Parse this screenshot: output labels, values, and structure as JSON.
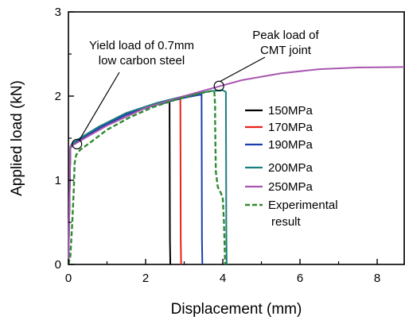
{
  "chart_data": {
    "type": "line",
    "xlabel": "Displacement (mm)",
    "ylabel": "Applied load (kN)",
    "xlim": [
      0,
      8.7
    ],
    "ylim": [
      0,
      3
    ],
    "xticks": [
      0,
      2,
      4,
      6,
      8
    ],
    "yticks": [
      0,
      1,
      2,
      3
    ],
    "grid": false,
    "legend_position": "right-center",
    "series": [
      {
        "name": "150MPa",
        "color": "#000000",
        "dash": "solid",
        "points": [
          [
            0,
            0
          ],
          [
            0.05,
            1.38
          ],
          [
            0.1,
            1.42
          ],
          [
            0.3,
            1.48
          ],
          [
            0.8,
            1.62
          ],
          [
            1.5,
            1.78
          ],
          [
            2.1,
            1.88
          ],
          [
            2.6,
            1.93
          ],
          [
            2.62,
            1.93
          ],
          [
            2.63,
            0.3
          ],
          [
            2.64,
            0
          ]
        ]
      },
      {
        "name": "170MPa",
        "color": "#e8201a",
        "dash": "solid",
        "points": [
          [
            0,
            0
          ],
          [
            0.05,
            1.38
          ],
          [
            0.1,
            1.42
          ],
          [
            0.3,
            1.48
          ],
          [
            0.8,
            1.62
          ],
          [
            1.5,
            1.78
          ],
          [
            2.2,
            1.89
          ],
          [
            2.8,
            1.96
          ],
          [
            2.9,
            1.97
          ],
          [
            2.91,
            0.3
          ],
          [
            2.92,
            0
          ]
        ]
      },
      {
        "name": "190MPa",
        "color": "#1c3fae",
        "dash": "solid",
        "points": [
          [
            0,
            0
          ],
          [
            0.05,
            1.38
          ],
          [
            0.1,
            1.42
          ],
          [
            0.3,
            1.48
          ],
          [
            0.8,
            1.62
          ],
          [
            1.5,
            1.78
          ],
          [
            2.3,
            1.9
          ],
          [
            3.0,
            1.98
          ],
          [
            3.45,
            2.02
          ],
          [
            3.46,
            0.3
          ],
          [
            3.47,
            0
          ]
        ]
      },
      {
        "name": "200MPa",
        "color": "#1b7f7f",
        "dash": "solid",
        "points": [
          [
            0,
            0
          ],
          [
            0.05,
            1.4
          ],
          [
            0.1,
            1.44
          ],
          [
            0.3,
            1.5
          ],
          [
            0.8,
            1.64
          ],
          [
            1.5,
            1.8
          ],
          [
            2.3,
            1.92
          ],
          [
            3.0,
            2.0
          ],
          [
            3.7,
            2.06
          ],
          [
            4.0,
            2.07
          ],
          [
            4.08,
            2.05
          ],
          [
            4.09,
            0.5
          ],
          [
            4.1,
            0
          ]
        ]
      },
      {
        "name": "250MPa",
        "color": "#a857b0",
        "dash": "solid",
        "points": [
          [
            0,
            0
          ],
          [
            0.05,
            1.4
          ],
          [
            0.2,
            1.44
          ],
          [
            0.5,
            1.52
          ],
          [
            1.0,
            1.65
          ],
          [
            2.0,
            1.86
          ],
          [
            3.0,
            2.0
          ],
          [
            3.86,
            2.11
          ],
          [
            4.5,
            2.19
          ],
          [
            5.5,
            2.27
          ],
          [
            6.5,
            2.32
          ],
          [
            7.5,
            2.34
          ],
          [
            8.7,
            2.345
          ]
        ]
      },
      {
        "name": "Experimental result",
        "color": "#2f8a2f",
        "dash": "dashed",
        "points": [
          [
            0,
            0
          ],
          [
            0.05,
            0.1
          ],
          [
            0.1,
            0.5
          ],
          [
            0.14,
            0.9
          ],
          [
            0.16,
            1.2
          ],
          [
            0.2,
            1.3
          ],
          [
            0.3,
            1.36
          ],
          [
            0.6,
            1.46
          ],
          [
            1.0,
            1.6
          ],
          [
            1.6,
            1.75
          ],
          [
            2.2,
            1.87
          ],
          [
            2.8,
            1.96
          ],
          [
            3.3,
            2.02
          ],
          [
            3.7,
            2.06
          ],
          [
            3.78,
            2.05
          ],
          [
            3.8,
            1.9
          ],
          [
            3.8,
            1.7
          ],
          [
            3.82,
            1.1
          ],
          [
            3.87,
            0.92
          ],
          [
            3.95,
            0.85
          ],
          [
            4.0,
            0.78
          ],
          [
            4.03,
            0.5
          ],
          [
            4.06,
            0
          ]
        ]
      }
    ],
    "annotations": [
      {
        "lines": [
          "Yield load of 0.7mm",
          "low carbon steel"
        ],
        "point": [
          0.22,
          1.43
        ]
      },
      {
        "lines": [
          "Peak load of",
          "CMT joint"
        ],
        "point": [
          3.9,
          2.12
        ]
      }
    ],
    "legend_labels": [
      "150MPa",
      "170MPa",
      "190MPa",
      "200MPa",
      "250MPa",
      "Experimental",
      "result"
    ]
  }
}
